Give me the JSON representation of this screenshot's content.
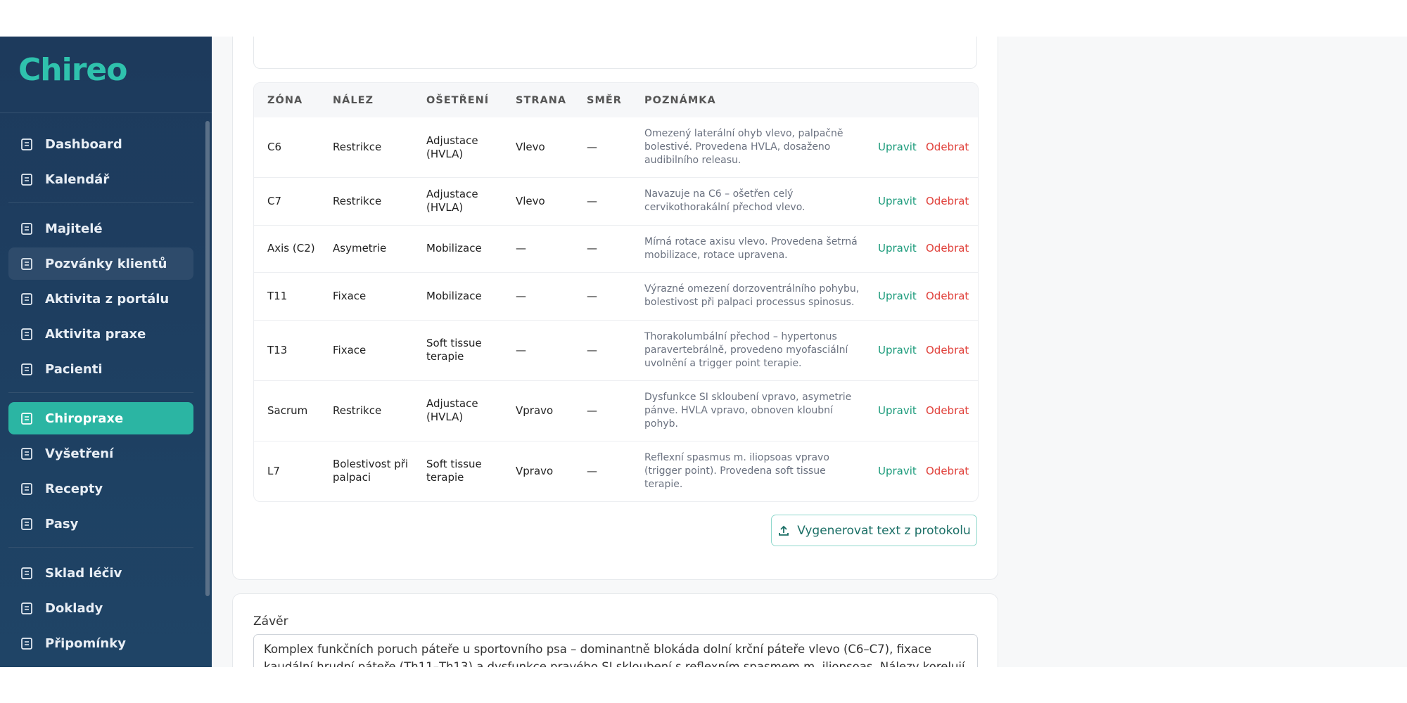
{
  "sidebar": {
    "logo": "Chireo",
    "nav": [
      [
        "Dashboard",
        "Kalendář"
      ],
      [
        "Majitelé",
        "Pozvánky klientů",
        "Aktivita z portálu",
        "Aktivita praxe",
        "Pacienti"
      ],
      [
        "Chiropraxe",
        "Vyšetření",
        "Recepty",
        "Pasy"
      ],
      [
        "Sklad léčiv",
        "Doklady",
        "Připomínky"
      ]
    ]
  },
  "table": {
    "headers": [
      "ZÓNA",
      "NÁLEZ",
      "OŠETŘENÍ",
      "STRANA",
      "SMĚR",
      "POZNÁMKA"
    ],
    "rows": [
      [
        "C6",
        "Restrikce",
        "Adjustace (HVLA)",
        "Vlevo",
        "—",
        "Omezený laterální ohyb vlevo, palpačně bolestivé. Provedena HVLA, dosaženo audibilního releasu."
      ],
      [
        "C7",
        "Restrikce",
        "Adjustace (HVLA)",
        "Vlevo",
        "—",
        "Navazuje na C6 – ošetřen celý cervikothorakální přechod vlevo."
      ],
      [
        "Axis (C2)",
        "Asymetrie",
        "Mobilizace",
        "—",
        "—",
        "Mírná rotace axisu vlevo. Provedena šetrná mobilizace, rotace upravena."
      ],
      [
        "T11",
        "Fixace",
        "Mobilizace",
        "—",
        "—",
        "Výrazné omezení dorzoventrálního pohybu, bolestivost při palpaci processus spinosus."
      ],
      [
        "T13",
        "Fixace",
        "Soft tissue terapie",
        "—",
        "—",
        "Thorakolumbální přechod – hypertonus paravertebrálně, provedeno myofasciální uvolnění a trigger point terapie."
      ],
      [
        "Sacrum",
        "Restrikce",
        "Adjustace (HVLA)",
        "Vpravo",
        "—",
        "Dysfunkce SI skloubení vpravo, asymetrie pánve. HVLA vpravo, obnoven kloubní pohyb."
      ],
      [
        "L7",
        "Bolestivost při palpaci",
        "Soft tissue terapie",
        "Vpravo",
        "—",
        "Reflexní spasmus m. iliopsoas vpravo (trigger point). Provedena soft tissue terapie."
      ]
    ],
    "actions": {
      "edit": "Upravit",
      "remove": "Odebrat"
    }
  },
  "generate_button": "Vygenerovat text z protokolu",
  "conclusion": {
    "label": "Závěr",
    "text": "Komplex funkčních poruch páteře u sportovního psa – dominantně blokáda dolní krční páteře vlevo (C6–C7), fixace kaudální hrudní páteře (Th11–Th13) a dysfunkce pravého SI skloubení s reflexním spasmem m. iliopsoas. Nálezy korelují s popisovaným"
  }
}
